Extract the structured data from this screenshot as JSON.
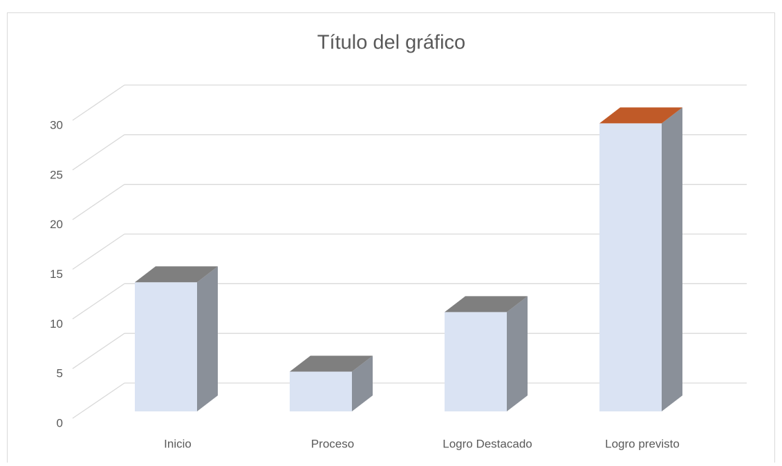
{
  "chart_data": {
    "type": "bar3d",
    "title": "Título del gráfico",
    "categories": [
      "Inicio",
      "Proceso",
      "Logro Destacado",
      "Logro previsto"
    ],
    "values": [
      13,
      4,
      10,
      29
    ],
    "color": "#dae3f3",
    "side_color": "#8a9099",
    "top_colors": [
      "#7f7f7f",
      "#7f7f7f",
      "#7f7f7f",
      "#c05a28"
    ],
    "ylim": [
      0,
      30
    ],
    "yticks": [
      0,
      5,
      10,
      15,
      20,
      25,
      30
    ],
    "grid": true
  }
}
